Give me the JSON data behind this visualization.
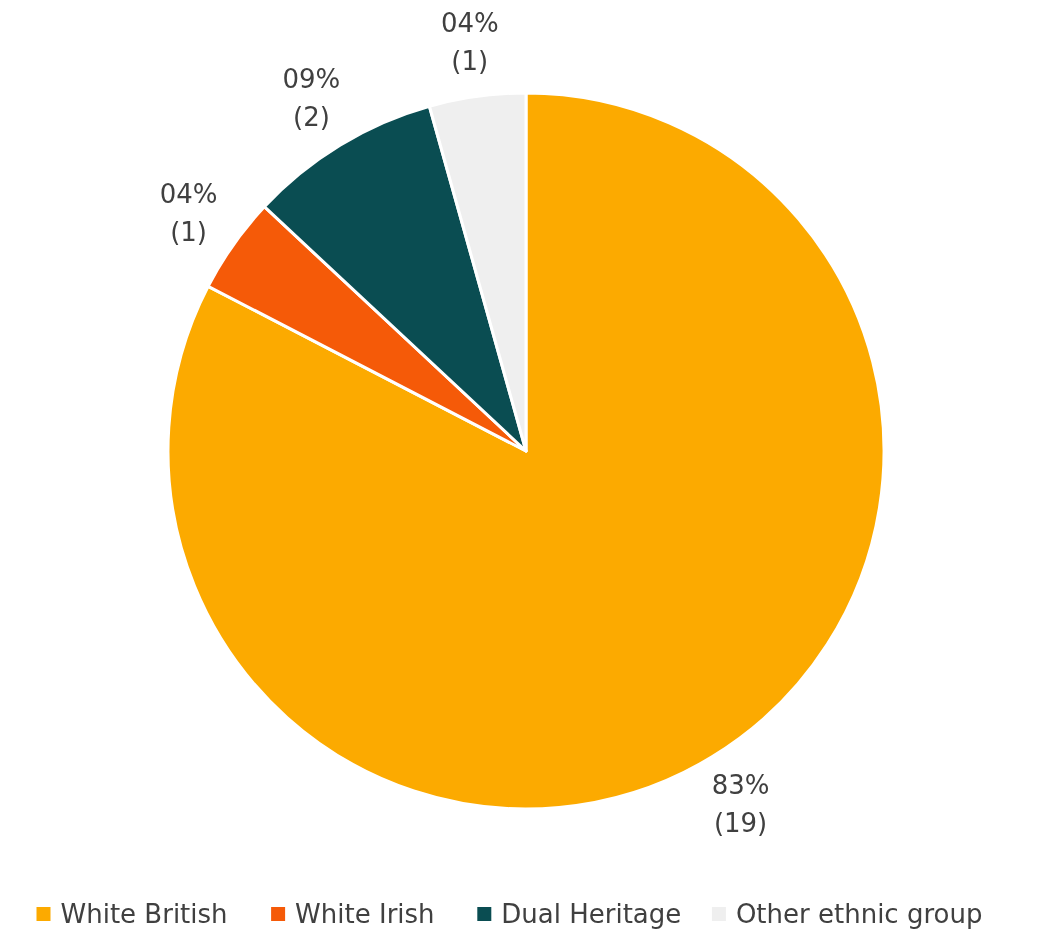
{
  "chart_data": {
    "type": "pie",
    "categories": [
      "White British",
      "White Irish",
      "Dual Heritage",
      "Other ethnic group"
    ],
    "values": [
      19,
      1,
      2,
      1
    ],
    "value_labels": [
      "83%\n(19)",
      "04%\n(1)",
      "09%\n(2)",
      "04%\n(1)"
    ],
    "colors": [
      "#fcaa00",
      "#f55a08",
      "#0a4d52",
      "#efefef"
    ],
    "legend": "bottom"
  }
}
